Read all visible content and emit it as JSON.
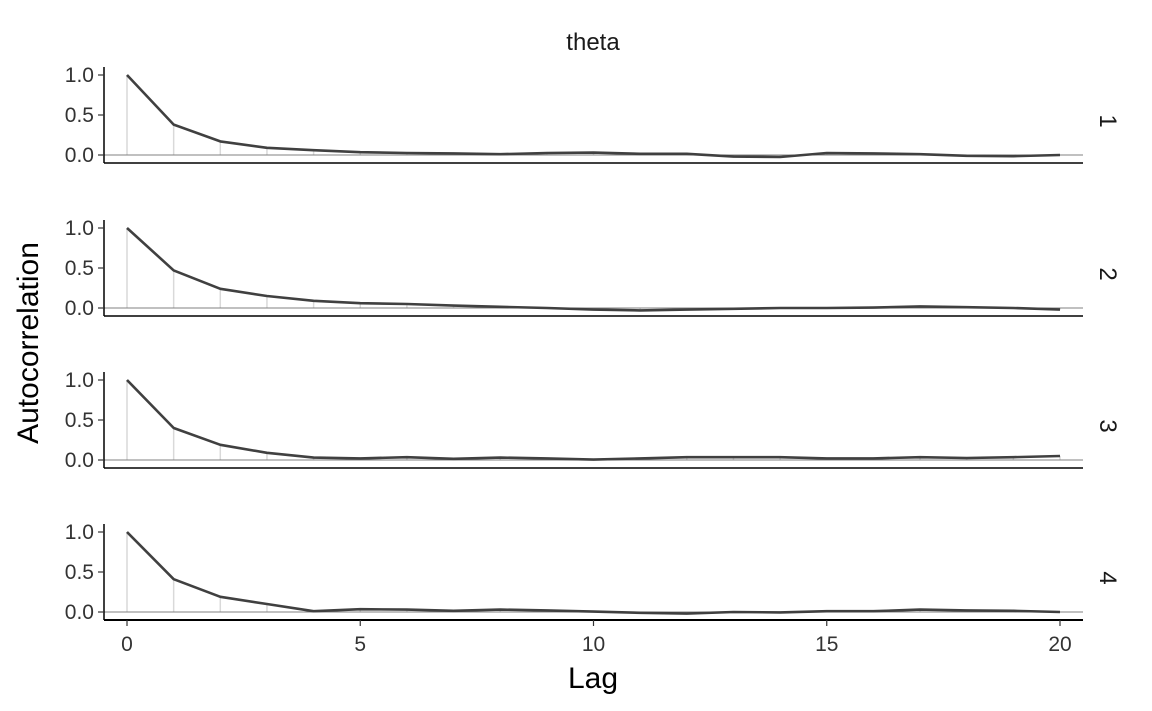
{
  "chart_data": {
    "type": "line",
    "title": "theta",
    "xlabel": "Lag",
    "ylabel": "Autocorrelation",
    "xlim": [
      0,
      20
    ],
    "ylim": [
      -0.1,
      1.05
    ],
    "x_ticks": [
      "0",
      "5",
      "10",
      "15",
      "20"
    ],
    "y_ticks": [
      "0.0",
      "0.5",
      "1.0"
    ],
    "grid": false,
    "colors": {
      "line": "#404040",
      "lag_bar": "#d9d9d9",
      "zero_line": "#808080"
    },
    "x": [
      0,
      1,
      2,
      3,
      4,
      5,
      6,
      7,
      8,
      9,
      10,
      11,
      12,
      13,
      14,
      15,
      16,
      17,
      18,
      19,
      20
    ],
    "facets": [
      {
        "label": "1",
        "values": [
          1.0,
          0.38,
          0.17,
          0.09,
          0.06,
          0.035,
          0.025,
          0.02,
          0.01,
          0.025,
          0.03,
          0.015,
          0.015,
          -0.02,
          -0.025,
          0.025,
          0.02,
          0.01,
          -0.01,
          -0.015,
          0.0
        ]
      },
      {
        "label": "2",
        "values": [
          1.0,
          0.47,
          0.24,
          0.15,
          0.09,
          0.06,
          0.05,
          0.03,
          0.015,
          0.0,
          -0.02,
          -0.03,
          -0.02,
          -0.01,
          0.0,
          0.0,
          0.005,
          0.02,
          0.01,
          0.0,
          -0.02
        ]
      },
      {
        "label": "3",
        "values": [
          1.0,
          0.4,
          0.19,
          0.09,
          0.03,
          0.02,
          0.035,
          0.015,
          0.03,
          0.02,
          0.005,
          0.02,
          0.035,
          0.035,
          0.035,
          0.02,
          0.02,
          0.035,
          0.025,
          0.035,
          0.05
        ]
      },
      {
        "label": "4",
        "values": [
          1.0,
          0.41,
          0.19,
          0.1,
          0.01,
          0.035,
          0.03,
          0.015,
          0.03,
          0.02,
          0.005,
          -0.01,
          -0.02,
          0.0,
          -0.005,
          0.01,
          0.01,
          0.03,
          0.02,
          0.015,
          0.0
        ]
      }
    ]
  }
}
